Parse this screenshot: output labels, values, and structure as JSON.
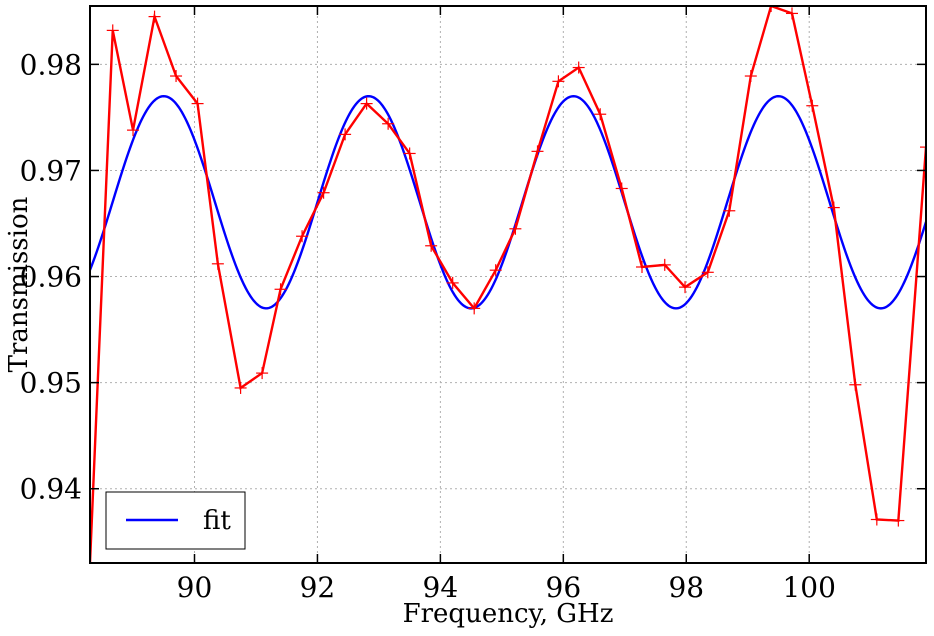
{
  "chart_data": {
    "type": "line",
    "xlabel": "Frequency, GHz",
    "ylabel": "Transmission",
    "xlim": [
      88.3,
      101.9
    ],
    "ylim": [
      0.933,
      0.9855
    ],
    "x_ticks": [
      90,
      92,
      94,
      96,
      98,
      100
    ],
    "x_tick_labels": [
      "90",
      "92",
      "94",
      "96",
      "98",
      "100"
    ],
    "y_ticks": [
      0.94,
      0.95,
      0.96,
      0.97,
      0.98
    ],
    "y_tick_labels": [
      "0.94",
      "0.95",
      "0.96",
      "0.97",
      "0.98"
    ],
    "grid": true,
    "legend": {
      "position": "bottom-left",
      "entries": [
        "fit"
      ]
    },
    "colors": {
      "measured": "#ff0000",
      "fit": "#0000ff"
    },
    "series": [
      {
        "key": "measured",
        "marker": "plus",
        "color": "#ff0000",
        "x": [
          88.3,
          88.67,
          89.0,
          89.35,
          89.7,
          90.05,
          90.38,
          90.75,
          91.1,
          91.4,
          91.75,
          92.1,
          92.45,
          92.8,
          93.15,
          93.5,
          93.85,
          94.2,
          94.55,
          94.9,
          95.22,
          95.58,
          95.92,
          96.25,
          96.6,
          96.95,
          97.28,
          97.65,
          97.98,
          98.35,
          98.7,
          99.05,
          99.38,
          99.72,
          100.05,
          100.4,
          100.75,
          101.1,
          101.45,
          101.9
        ],
        "y": [
          0.933,
          0.9832,
          0.9738,
          0.9845,
          0.9789,
          0.9763,
          0.9612,
          0.9495,
          0.9509,
          0.9588,
          0.9638,
          0.9679,
          0.9734,
          0.9763,
          0.9744,
          0.9716,
          0.9629,
          0.9594,
          0.957,
          0.9606,
          0.9645,
          0.9718,
          0.9784,
          0.9797,
          0.9753,
          0.9683,
          0.9609,
          0.9611,
          0.959,
          0.9604,
          0.9662,
          0.9789,
          0.9855,
          0.9848,
          0.9761,
          0.9665,
          0.9498,
          0.9371,
          0.937,
          0.9722
        ]
      },
      {
        "key": "fit",
        "name": "fit",
        "color": "#0000ff",
        "model": {
          "center": 0.967,
          "amplitude": 0.01,
          "period_ghz": 3.333,
          "peak_at_ghz": 89.5
        }
      }
    ]
  }
}
